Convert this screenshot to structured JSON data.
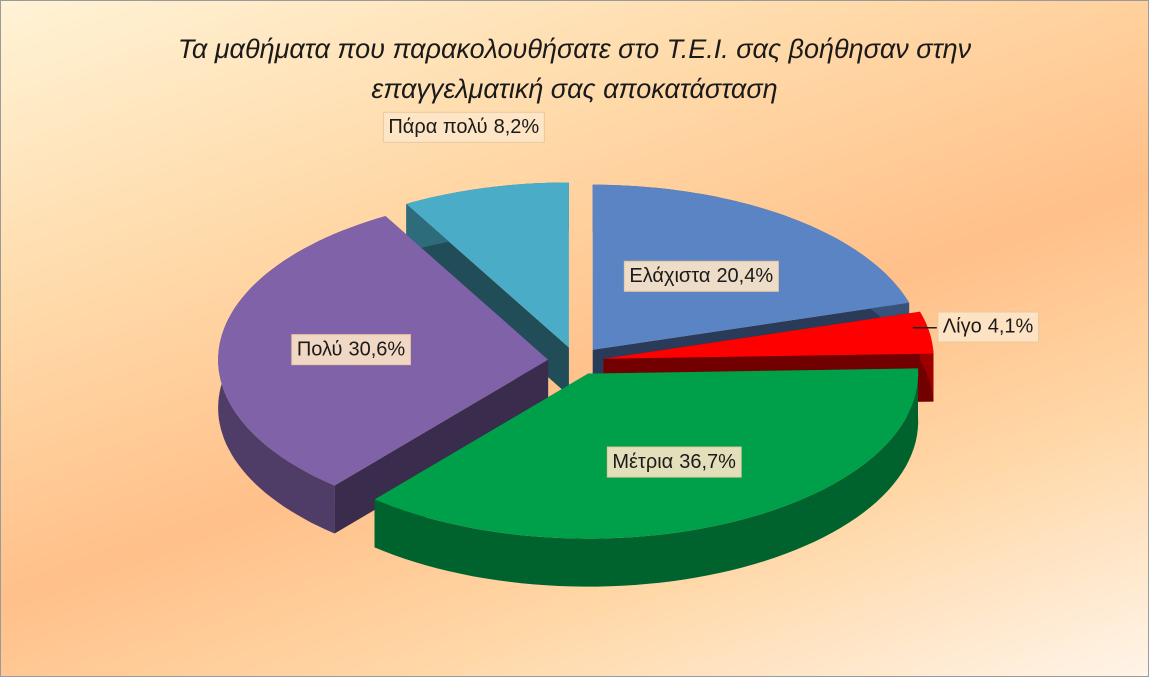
{
  "chart_data": {
    "type": "pie",
    "title": "Τα μαθήματα που παρακολουθήσατε στο Τ.Ε.Ι. σας βοήθησαν στην επαγγελματική σας αποκατάσταση",
    "categories": [
      "Ελάχιστα",
      "Λίγο",
      "Μέτρια",
      "Πολύ",
      "Πάρα πολύ"
    ],
    "values": [
      20.4,
      4.1,
      36.7,
      30.6,
      8.2
    ],
    "value_labels": [
      "20,4%",
      "4,1%",
      "36,7%",
      "30,6%",
      "8,2%"
    ],
    "colors": [
      "#5b84c4",
      "#ff0000",
      "#00a04a",
      "#7f62a8",
      "#4aacc6"
    ]
  }
}
